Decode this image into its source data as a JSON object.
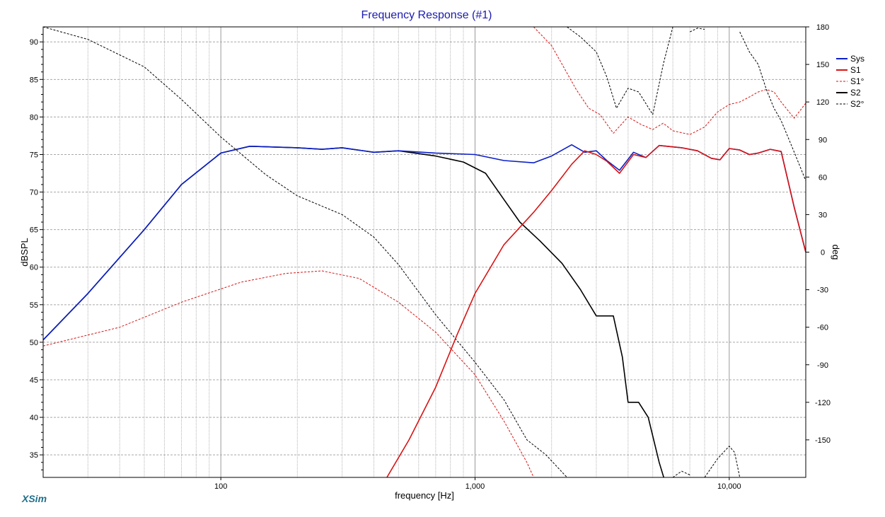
{
  "app": {
    "title": "Frequency Response (#1)",
    "brand": "XSim"
  },
  "chart_data": {
    "type": "line",
    "title": "Frequency Response (#1)",
    "xlabel": "frequency [Hz]",
    "ylabel": "dBSPL",
    "y2label": "deg",
    "xscale": "log",
    "xlim": [
      20,
      20000
    ],
    "ylim": [
      32,
      92
    ],
    "y2lim": [
      -180,
      180
    ],
    "x_ticks": [
      100,
      1000,
      10000
    ],
    "x_tick_labels": [
      "100",
      "1,000",
      "10,000"
    ],
    "y_ticks": [
      35,
      40,
      45,
      50,
      55,
      60,
      65,
      70,
      75,
      80,
      85,
      90
    ],
    "y2_ticks": [
      -150,
      -120,
      -90,
      -60,
      -30,
      0,
      30,
      60,
      90,
      120,
      150,
      180
    ],
    "grid": true,
    "legend_position": "right",
    "series": [
      {
        "name": "Sys",
        "axis": "left",
        "color": "#0a1fc8",
        "style": "solid",
        "width": 1.6,
        "points": [
          [
            20,
            50.3
          ],
          [
            30,
            56.5
          ],
          [
            50,
            65
          ],
          [
            70,
            71
          ],
          [
            100,
            75.2
          ],
          [
            130,
            76.1
          ],
          [
            200,
            75.9
          ],
          [
            250,
            75.7
          ],
          [
            300,
            75.9
          ],
          [
            400,
            75.3
          ],
          [
            500,
            75.5
          ],
          [
            700,
            75.2
          ],
          [
            1000,
            75
          ],
          [
            1300,
            74.2
          ],
          [
            1700,
            73.9
          ],
          [
            2000,
            74.8
          ],
          [
            2400,
            76.3
          ],
          [
            2700,
            75.3
          ],
          [
            3000,
            75.5
          ],
          [
            3300,
            74.2
          ],
          [
            3700,
            72.9
          ],
          [
            4200,
            75.3
          ],
          [
            4700,
            74.6
          ],
          [
            5300,
            76.2
          ],
          [
            6500,
            75.9
          ],
          [
            7500,
            75.5
          ],
          [
            8500,
            74.5
          ],
          [
            9200,
            74.3
          ],
          [
            10000,
            75.8
          ],
          [
            11000,
            75.6
          ],
          [
            12000,
            75
          ],
          [
            13000,
            75.2
          ],
          [
            14500,
            75.7
          ],
          [
            16000,
            75.4
          ],
          [
            18000,
            68
          ],
          [
            20000,
            62
          ]
        ]
      },
      {
        "name": "S1",
        "axis": "left",
        "color": "#d91313",
        "style": "solid",
        "width": 1.6,
        "points": [
          [
            450,
            32
          ],
          [
            550,
            37
          ],
          [
            700,
            44
          ],
          [
            850,
            51
          ],
          [
            1000,
            56.5
          ],
          [
            1300,
            63
          ],
          [
            1700,
            67.3
          ],
          [
            2000,
            70.2
          ],
          [
            2400,
            73.7
          ],
          [
            2700,
            75.5
          ],
          [
            3000,
            75
          ],
          [
            3300,
            74.1
          ],
          [
            3700,
            72.5
          ],
          [
            4200,
            75
          ],
          [
            4700,
            74.6
          ],
          [
            5300,
            76.2
          ],
          [
            6500,
            75.9
          ],
          [
            7500,
            75.5
          ],
          [
            8500,
            74.5
          ],
          [
            9200,
            74.3
          ],
          [
            10000,
            75.8
          ],
          [
            11000,
            75.6
          ],
          [
            12000,
            75
          ],
          [
            13000,
            75.2
          ],
          [
            14500,
            75.7
          ],
          [
            16000,
            75.4
          ],
          [
            18000,
            68
          ],
          [
            20000,
            62
          ]
        ]
      },
      {
        "name": "S1°",
        "axis": "right",
        "color": "#d91313",
        "style": "dashed",
        "width": 1,
        "segments": [
          [
            [
              20,
              -75
            ],
            [
              40,
              -60
            ],
            [
              70,
              -40
            ],
            [
              120,
              -24
            ],
            [
              180,
              -17
            ],
            [
              250,
              -15
            ],
            [
              350,
              -21
            ],
            [
              500,
              -40
            ],
            [
              700,
              -64
            ],
            [
              1000,
              -98
            ],
            [
              1300,
              -135
            ],
            [
              1600,
              -168
            ],
            [
              1700,
              -180
            ]
          ],
          [
            [
              1700,
              180
            ],
            [
              2000,
              165
            ],
            [
              2500,
              130
            ],
            [
              2800,
              115
            ],
            [
              3100,
              110
            ],
            [
              3500,
              95
            ],
            [
              4000,
              108
            ],
            [
              4500,
              102
            ],
            [
              5000,
              98
            ],
            [
              5500,
              103
            ],
            [
              6000,
              97
            ],
            [
              7000,
              94
            ],
            [
              8000,
              100
            ],
            [
              9000,
              112
            ],
            [
              10000,
              118
            ],
            [
              11000,
              120
            ],
            [
              12000,
              124
            ],
            [
              13000,
              128
            ],
            [
              14000,
              130
            ],
            [
              15000,
              128
            ],
            [
              16000,
              120
            ],
            [
              18000,
              107
            ],
            [
              20000,
              119
            ]
          ]
        ]
      },
      {
        "name": "S2",
        "axis": "left",
        "color": "#000000",
        "style": "solid",
        "width": 1.6,
        "points": [
          [
            20,
            50.3
          ],
          [
            30,
            56.5
          ],
          [
            50,
            65
          ],
          [
            70,
            71
          ],
          [
            100,
            75.2
          ],
          [
            130,
            76.1
          ],
          [
            200,
            75.9
          ],
          [
            250,
            75.7
          ],
          [
            300,
            75.9
          ],
          [
            400,
            75.3
          ],
          [
            500,
            75.5
          ],
          [
            700,
            74.8
          ],
          [
            900,
            74
          ],
          [
            1100,
            72.5
          ],
          [
            1300,
            69
          ],
          [
            1500,
            66
          ],
          [
            1800,
            63.5
          ],
          [
            2200,
            60.5
          ],
          [
            2600,
            57
          ],
          [
            3000,
            53.5
          ],
          [
            3500,
            53.5
          ],
          [
            3800,
            48
          ],
          [
            4000,
            42
          ],
          [
            4400,
            42
          ],
          [
            4800,
            40
          ],
          [
            5300,
            34
          ],
          [
            6000,
            28
          ]
        ]
      },
      {
        "name": "S2°",
        "axis": "right",
        "color": "#000000",
        "style": "dashed",
        "width": 1,
        "segments": [
          [
            [
              20,
              180
            ],
            [
              30,
              170
            ],
            [
              50,
              148
            ],
            [
              70,
              122
            ],
            [
              100,
              92
            ],
            [
              150,
              62
            ],
            [
              200,
              45
            ],
            [
              300,
              30
            ],
            [
              400,
              12
            ],
            [
              500,
              -10
            ],
            [
              700,
              -50
            ],
            [
              1000,
              -88
            ],
            [
              1300,
              -118
            ],
            [
              1600,
              -150
            ],
            [
              1900,
              -162
            ],
            [
              2300,
              -180
            ]
          ],
          [
            [
              2300,
              180
            ],
            [
              2600,
              172
            ],
            [
              3000,
              160
            ],
            [
              3300,
              140
            ],
            [
              3600,
              115
            ],
            [
              4000,
              131
            ],
            [
              4400,
              128
            ],
            [
              5000,
              110
            ],
            [
              5500,
              150
            ],
            [
              6000,
              180
            ]
          ],
          [
            [
              6000,
              -180
            ],
            [
              6500,
              -175
            ],
            [
              7000,
              -178
            ]
          ],
          [
            [
              7000,
              176
            ],
            [
              7500,
              179
            ],
            [
              8000,
              178
            ]
          ],
          [
            [
              8000,
              -180
            ],
            [
              9000,
              -165
            ],
            [
              10000,
              -155
            ],
            [
              10500,
              -160
            ],
            [
              11000,
              -180
            ]
          ],
          [
            [
              11000,
              176
            ],
            [
              12000,
              160
            ],
            [
              13000,
              150
            ],
            [
              14000,
              130
            ],
            [
              15000,
              115
            ],
            [
              16000,
              105
            ],
            [
              18000,
              80
            ],
            [
              20000,
              57
            ]
          ]
        ]
      }
    ]
  }
}
